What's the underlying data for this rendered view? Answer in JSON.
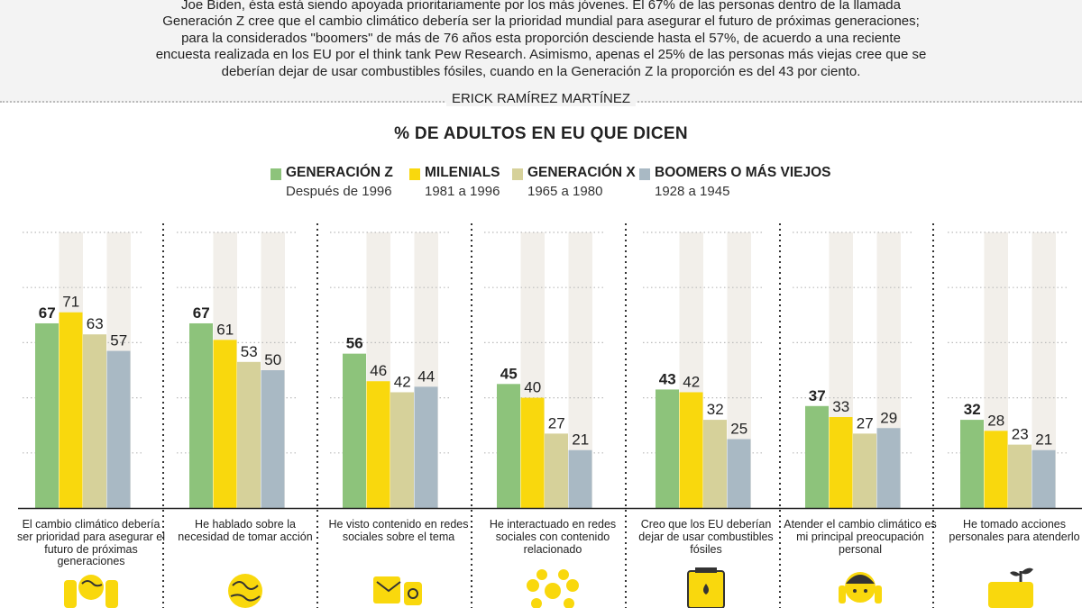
{
  "article": {
    "intro": "Joe Biden, ésta está siendo apoyada prioritariamente por los más jóvenes. El 67% de las personas dentro de la llamada Generación Z cree que el cambio climático debería ser la prioridad mundial para asegurar el futuro de próximas generaciones; para la considerados \"boomers\" de más de 76 años esta proporción desciende hasta el 57%, de acuerdo a una reciente encuesta realizada en los EU por el think tank Pew Research. Asimismo, apenas el 25% de las personas más viejas cree que se deberían dejar de usar combustibles fósiles, cuando en la Generación Z la proporción es del 43 por ciento.",
    "author": "ERICK RAMÍREZ MARTÍNEZ"
  },
  "legend": [
    {
      "name": "GENERACIÓN Z",
      "sub": "Después de 1996",
      "color": "#8dc37b"
    },
    {
      "name": "MILENIALS",
      "sub": "1981 a 1996",
      "color": "#f9d80d"
    },
    {
      "name": "GENERACIÓN X",
      "sub": "1965 a 1980",
      "color": "#d6d19a"
    },
    {
      "name": "BOOMERS O MÁS VIEJOS",
      "sub": "1928 a 1945",
      "color": "#a9b9c4"
    }
  ],
  "chart_data": {
    "type": "bar",
    "title": "% DE ADULTOS EN EU QUE DICEN",
    "categories": [
      "El cambio climático debería ser prioridad para asegurar el futuro de próximas generaciones",
      "He hablado sobre la necesidad de tomar acción",
      "He visto contenido en redes sociales sobre el tema",
      "He interactuado en redes sociales con contenido relacionado",
      "Creo que los EU deberían dejar de usar combustibles fósiles",
      "Atender el cambio climático es mi principal preocupación personal",
      "He tomado acciones personales para atenderlo"
    ],
    "series": [
      {
        "name": "GENERACIÓN Z",
        "values": [
          67,
          67,
          56,
          45,
          43,
          37,
          32
        ]
      },
      {
        "name": "MILENIALS",
        "values": [
          71,
          61,
          46,
          40,
          42,
          33,
          28
        ]
      },
      {
        "name": "GENERACIÓN X",
        "values": [
          63,
          53,
          42,
          27,
          32,
          27,
          23
        ]
      },
      {
        "name": "BOOMERS O MÁS VIEJOS",
        "values": [
          57,
          50,
          44,
          21,
          25,
          29,
          21
        ]
      }
    ],
    "ylim": [
      0,
      100
    ],
    "grid": true,
    "xlabel": "",
    "ylabel": ""
  },
  "icons": [
    "hands-globe-icon",
    "globe-speech-icon",
    "social-media-devices-icon",
    "network-people-icon",
    "fuel-barrel-icon",
    "worried-person-icon",
    "plant-hand-icon"
  ],
  "colors": {
    "icon": "#f9d80d",
    "icon_dark": "#333333",
    "column_bg": "#f2efea",
    "grid": "#bbbbbb"
  }
}
